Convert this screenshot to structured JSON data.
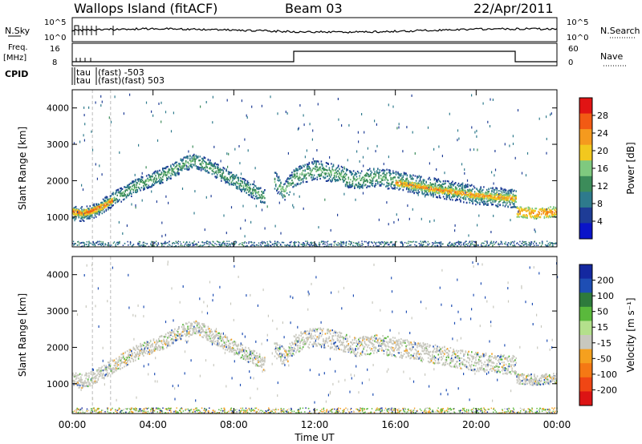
{
  "header": {
    "title": "Wallops Island (fitACF)",
    "beam": "Beam 03",
    "date": "22/Apr/2011"
  },
  "strip_labels": {
    "nsky": "N.Sky",
    "nsky_ticks": [
      "10^5",
      "10^0"
    ],
    "nsearch": "N.Search",
    "nsearch_ticks": [
      "10^5",
      "10^0"
    ],
    "freq": "Freq.",
    "freq_unit": "[MHz]",
    "freq_ticks": [
      "16",
      "8"
    ],
    "nave": "Nave",
    "nave_ticks": [
      "60",
      "0"
    ],
    "cpid": "CPID",
    "cpid_text_1": "tau",
    "cpid_text_2": "tau",
    "cpid_text_3": "(fast) -503",
    "cpid_text_4": "(fast)(fast) 503"
  },
  "panels": {
    "power_ylabel": "Slant Range [km]",
    "velocity_ylabel": "Slant Range [km]",
    "xlabel": "Time UT"
  },
  "colorbars": {
    "power": {
      "label": "Power [dB]",
      "ticks": [
        "28",
        "24",
        "20",
        "16",
        "12",
        "8",
        "4"
      ],
      "colors": [
        "#e11414",
        "#f25a14",
        "#f59a1e",
        "#f2c81e",
        "#7fc97f",
        "#3c8c5a",
        "#2e7a8c",
        "#1e3c96",
        "#0a14c8"
      ]
    },
    "velocity": {
      "label": "Velocity [m s⁻¹]",
      "ticks": [
        "200",
        "100",
        "50",
        "15",
        "-15",
        "-50",
        "-100",
        "-200"
      ],
      "colors": [
        "#1428a0",
        "#1e4eb4",
        "#2e7a3c",
        "#5ab93c",
        "#b4e08c",
        "#c8c8be",
        "#f5a01e",
        "#f57814",
        "#f04614",
        "#dc1414"
      ]
    }
  },
  "chart_data": [
    {
      "type": "heatmap",
      "title": "Power",
      "xlabel": "Time UT",
      "ylabel": "Slant Range [km]",
      "x_ticks": [
        "00:00",
        "04:00",
        "08:00",
        "12:00",
        "16:00",
        "20:00",
        "00:00"
      ],
      "y_ticks": [
        "1000",
        "2000",
        "3000",
        "4000"
      ],
      "xlim_hours": [
        0,
        24
      ],
      "ylim_km": [
        180,
        4500
      ],
      "colorbar": {
        "label": "Power [dB]",
        "range": [
          2,
          30
        ]
      },
      "bands": [
        {
          "x": [
            0,
            0.5,
            1,
            1.5,
            2,
            3,
            3.5,
            4,
            4.5,
            5,
            5.5,
            6,
            6.5,
            7,
            7.5,
            8,
            8.5,
            9,
            9.5
          ],
          "y": [
            1100,
            1080,
            1150,
            1300,
            1500,
            1800,
            1950,
            2050,
            2150,
            2300,
            2450,
            2550,
            2450,
            2300,
            2150,
            2000,
            1850,
            1700,
            1550
          ],
          "halfwidth": 200,
          "level": 14
        },
        {
          "x": [
            0,
            0.5,
            1,
            1.5,
            2
          ],
          "y": [
            1150,
            1100,
            1180,
            1300,
            1450
          ],
          "halfwidth": 80,
          "level": 26
        },
        {
          "x": [
            10,
            10.5,
            11,
            12,
            13,
            14,
            15,
            16,
            17,
            18,
            19,
            20,
            21,
            22
          ],
          "y": [
            2000,
            1700,
            2100,
            2300,
            2200,
            2000,
            2100,
            2000,
            1900,
            1800,
            1700,
            1600,
            1550,
            1500
          ],
          "halfwidth": 260,
          "level": 14
        },
        {
          "x": [
            16,
            17,
            18,
            19,
            20,
            21,
            22
          ],
          "y": [
            1950,
            1850,
            1750,
            1680,
            1600,
            1550,
            1500
          ],
          "halfwidth": 90,
          "level": 24
        },
        {
          "x": [
            22,
            23,
            24
          ],
          "y": [
            1150,
            1100,
            1150
          ],
          "halfwidth": 150,
          "level": 24
        }
      ]
    },
    {
      "type": "heatmap",
      "title": "Velocity",
      "xlabel": "Time UT",
      "ylabel": "Slant Range [km]",
      "x_ticks": [
        "00:00",
        "04:00",
        "08:00",
        "12:00",
        "16:00",
        "20:00",
        "00:00"
      ],
      "y_ticks": [
        "1000",
        "2000",
        "3000",
        "4000"
      ],
      "xlim_hours": [
        0,
        24
      ],
      "ylim_km": [
        180,
        4500
      ],
      "colorbar": {
        "label": "Velocity [m s⁻¹]",
        "range": [
          -250,
          250
        ]
      },
      "bands": [
        {
          "x": [
            0,
            0.5,
            1,
            1.5,
            2,
            3,
            3.5,
            4,
            4.5,
            5,
            5.5,
            6,
            6.5,
            7,
            7.5,
            8,
            8.5,
            9,
            9.5
          ],
          "y": [
            1100,
            1080,
            1150,
            1300,
            1500,
            1800,
            1950,
            2050,
            2150,
            2300,
            2450,
            2550,
            2450,
            2300,
            2150,
            2000,
            1850,
            1700,
            1550
          ],
          "halfwidth": 200,
          "level": 0
        },
        {
          "x": [
            10,
            10.5,
            11,
            12,
            13,
            14,
            15,
            16,
            17,
            18,
            19,
            20,
            21,
            22
          ],
          "y": [
            2000,
            1700,
            2100,
            2300,
            2200,
            2000,
            2100,
            2000,
            1900,
            1800,
            1700,
            1600,
            1550,
            1500
          ],
          "halfwidth": 260,
          "level": 0
        },
        {
          "x": [
            22,
            23,
            24
          ],
          "y": [
            1150,
            1100,
            1150
          ],
          "halfwidth": 150,
          "level": 0
        }
      ]
    }
  ]
}
